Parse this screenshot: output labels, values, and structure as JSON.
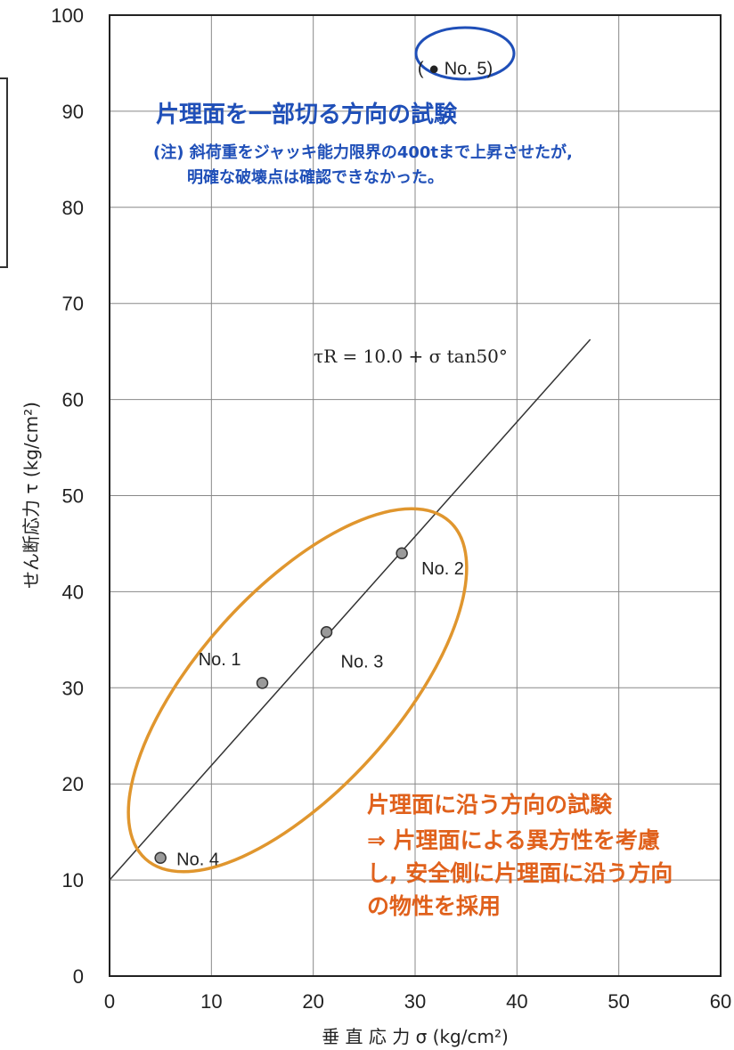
{
  "chart_data": {
    "type": "scatter",
    "xlabel": "垂 直 応 力 σ (kg/cm²)",
    "ylabel": "せん断応力 τ (kg/cm²)",
    "xlim": [
      0,
      60
    ],
    "ylim": [
      0,
      100
    ],
    "x_ticks": [
      "0",
      "10",
      "20",
      "30",
      "40",
      "50",
      "60"
    ],
    "y_ticks": [
      "0",
      "10",
      "20",
      "30",
      "40",
      "50",
      "60",
      "70",
      "80",
      "90",
      "100"
    ],
    "grid": true,
    "points": [
      {
        "label": "No. 1",
        "x": 15.0,
        "y": 30.5
      },
      {
        "label": "No. 2",
        "x": 28.7,
        "y": 44.0
      },
      {
        "label": "No. 3",
        "x": 21.3,
        "y": 35.8
      },
      {
        "label": "No. 4",
        "x": 5.0,
        "y": 12.3
      },
      {
        "label": "( ● No. 5)",
        "x": 32.7,
        "y": 94.5
      }
    ],
    "fit_line": {
      "equation": "τR = 10.0 + σ tan50°",
      "intercept": 10.0,
      "slope": 1.1918,
      "x_range": [
        0,
        47.2
      ]
    },
    "annotations": {
      "blue_title": "片理面を一部切る方向の試験",
      "blue_note_1": "(注) 斜荷重をジャッキ能力限界の400tまで上昇させたが,",
      "blue_note_2": "明確な破壊点は確認できなかった。",
      "orange_title": "片理面に沿う方向の試験",
      "orange_line_1": "⇒ 片理面による異方性を考慮",
      "orange_line_2": "し, 安全側に片理面に沿う方向",
      "orange_line_3": "の物性を採用"
    },
    "colors": {
      "blue": "#1f4fb8",
      "orange": "#e0611c",
      "ellipse_orange": "#e0962e",
      "point_fill": "#9a9a9a"
    }
  }
}
